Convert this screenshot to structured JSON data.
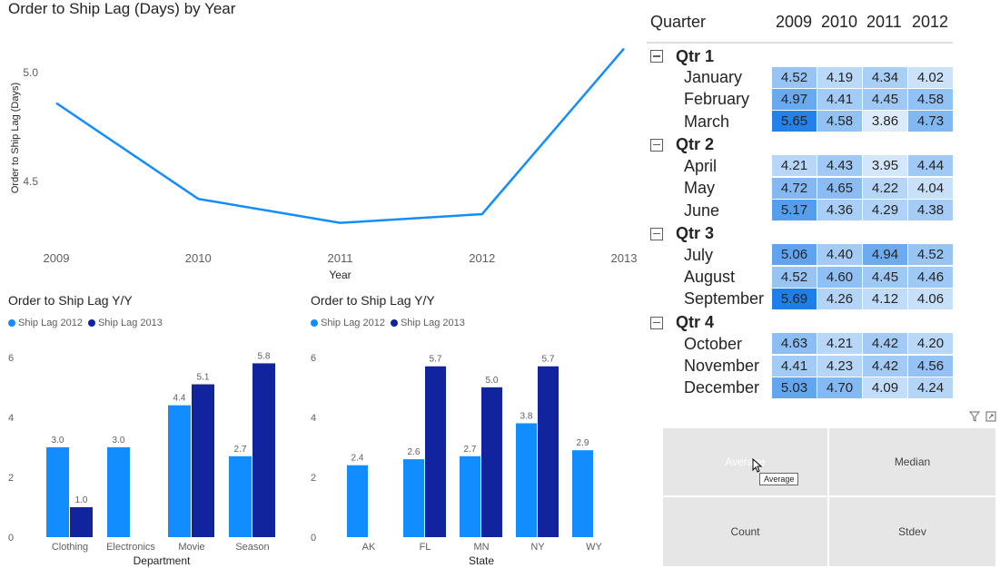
{
  "line_chart": {
    "title": "Order to Ship Lag (Days) by Year",
    "chart_data": {
      "type": "line",
      "x": [
        "2009",
        "2010",
        "2011",
        "2012",
        "2013"
      ],
      "series": [
        {
          "values": [
            4.86,
            4.42,
            4.31,
            4.35,
            5.11
          ]
        }
      ],
      "xlabel": "Year",
      "ylabel": "Order to Ship Lag (Days)",
      "yticks": [
        "4.5",
        "5.0"
      ],
      "ylim": [
        4.2,
        5.2
      ],
      "color": "#118dff"
    }
  },
  "dept_chart": {
    "title": "Order to Ship Lag Y/Y",
    "chart_data": {
      "type": "bar",
      "categories": [
        "Clothing",
        "Electronics",
        "Movie",
        "Season"
      ],
      "series": [
        {
          "name": "Ship Lag 2012",
          "values": [
            3.0,
            3.0,
            4.4,
            2.7
          ],
          "labels": [
            "3.0",
            "3.0",
            "4.4",
            "2.7"
          ],
          "color": "#118dff"
        },
        {
          "name": "Ship Lag 2013",
          "values": [
            1.0,
            null,
            5.1,
            5.8
          ],
          "labels": [
            "1.0",
            "",
            "5.1",
            "5.8"
          ],
          "color": "#12239e"
        }
      ],
      "xlabel": "Department",
      "yticks": [
        "0",
        "2",
        "4",
        "6"
      ],
      "ylim": [
        0,
        6.6
      ]
    }
  },
  "state_chart": {
    "title": "Order to Ship Lag Y/Y",
    "chart_data": {
      "type": "bar",
      "categories": [
        "AK",
        "FL",
        "MN",
        "NY",
        "WY"
      ],
      "series": [
        {
          "name": "Ship Lag 2012",
          "values": [
            2.4,
            2.6,
            2.7,
            3.8,
            2.9
          ],
          "labels": [
            "2.4",
            "2.6",
            "2.7",
            "3.8",
            "2.9"
          ],
          "color": "#118dff"
        },
        {
          "name": "Ship Lag 2013",
          "values": [
            null,
            5.7,
            5.0,
            5.7,
            null
          ],
          "labels": [
            "",
            "5.7",
            "5.0",
            "5.7",
            ""
          ],
          "color": "#12239e"
        }
      ],
      "xlabel": "State",
      "yticks": [
        "0",
        "2",
        "4",
        "6"
      ],
      "ylim": [
        0,
        6.6
      ]
    }
  },
  "matrix": {
    "header": "Quarter",
    "years": [
      "2009",
      "2010",
      "2011",
      "2012"
    ],
    "quarters": [
      {
        "label": "Qtr 1",
        "months": [
          {
            "name": "January",
            "values": [
              "4.52",
              "4.19",
              "4.34",
              "4.02"
            ]
          },
          {
            "name": "February",
            "values": [
              "4.97",
              "4.41",
              "4.45",
              "4.58"
            ]
          },
          {
            "name": "March",
            "values": [
              "5.65",
              "4.58",
              "3.86",
              "4.73"
            ]
          }
        ]
      },
      {
        "label": "Qtr 2",
        "months": [
          {
            "name": "April",
            "values": [
              "4.21",
              "4.43",
              "3.95",
              "4.44"
            ]
          },
          {
            "name": "May",
            "values": [
              "4.72",
              "4.65",
              "4.22",
              "4.04"
            ]
          },
          {
            "name": "June",
            "values": [
              "5.17",
              "4.36",
              "4.29",
              "4.38"
            ]
          }
        ]
      },
      {
        "label": "Qtr 3",
        "months": [
          {
            "name": "July",
            "values": [
              "5.06",
              "4.40",
              "4.94",
              "4.52"
            ]
          },
          {
            "name": "August",
            "values": [
              "4.52",
              "4.60",
              "4.45",
              "4.46"
            ]
          },
          {
            "name": "September",
            "values": [
              "5.69",
              "4.26",
              "4.12",
              "4.06"
            ]
          }
        ]
      },
      {
        "label": "Qtr 4",
        "months": [
          {
            "name": "October",
            "values": [
              "4.63",
              "4.21",
              "4.42",
              "4.20"
            ]
          },
          {
            "name": "November",
            "values": [
              "4.41",
              "4.23",
              "4.42",
              "4.56"
            ]
          },
          {
            "name": "December",
            "values": [
              "5.03",
              "4.70",
              "4.09",
              "4.24"
            ]
          }
        ]
      }
    ],
    "color_min": "#dcebfb",
    "color_max": "#1f7fe8"
  },
  "slicer": {
    "buttons": [
      "Average",
      "Median",
      "Count",
      "Stdev"
    ],
    "tooltip": "Average",
    "icons": [
      "filter-icon",
      "focus-mode-icon"
    ]
  }
}
